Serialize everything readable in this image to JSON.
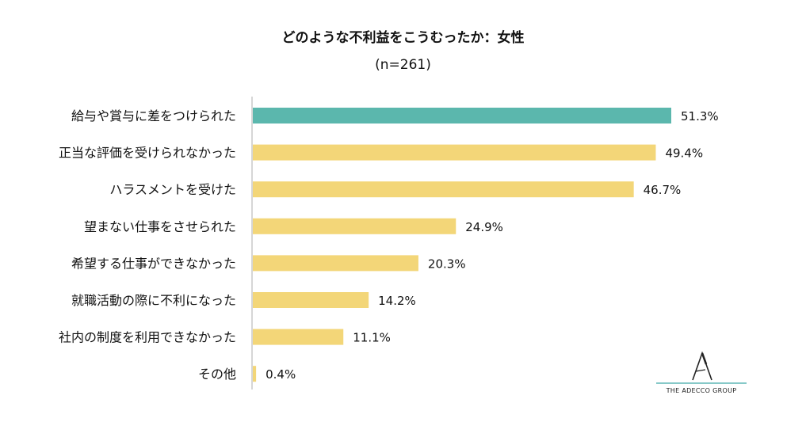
{
  "chart_data": {
    "type": "bar",
    "orientation": "horizontal",
    "title": "どのような不利益をこうむったか：女性",
    "subtitle": "(n=261)",
    "categories": [
      "給与や賞与に差をつけられた",
      "正当な評価を受けられなかった",
      "ハラスメントを受けた",
      "望まない仕事をさせられた",
      "希望する仕事ができなかった",
      "就職活動の際に不利になった",
      "社内の制度を利用できなかった",
      "その他"
    ],
    "values": [
      51.3,
      49.4,
      46.7,
      24.9,
      20.3,
      14.2,
      11.1,
      0.4
    ],
    "value_labels": [
      "51.3%",
      "49.4%",
      "46.7%",
      "24.9%",
      "20.3%",
      "14.2%",
      "11.1%",
      "0.4%"
    ],
    "highlight_index": 0,
    "colors": {
      "highlight": "#5bb7ad",
      "default": "#f3d678",
      "axis": "#c8c8c8"
    },
    "xlim": [
      0,
      60
    ],
    "grid": false,
    "legend": "none"
  },
  "logo": {
    "text": "THE ADECCO GROUP",
    "icon": "adecco-a-logo-icon",
    "rule_color": "#3fa9a6"
  }
}
